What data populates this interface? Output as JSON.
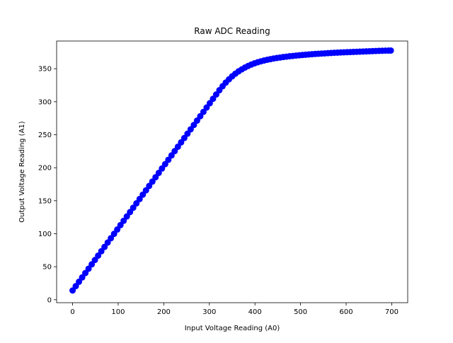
{
  "chart_data": {
    "type": "scatter",
    "title": "Raw ADC Reading",
    "xlabel": "Input Voltage Reading (A0)",
    "ylabel": "Output Voltage Reading (A1)",
    "xlim": [
      -35,
      735
    ],
    "ylim": [
      -4.5,
      392
    ],
    "xticks": [
      0,
      100,
      200,
      300,
      400,
      500,
      600,
      700
    ],
    "yticks": [
      0,
      50,
      100,
      150,
      200,
      250,
      300,
      350
    ],
    "xtick_labels": [
      "0",
      "100",
      "200",
      "300",
      "400",
      "500",
      "600",
      "700"
    ],
    "ytick_labels": [
      "0",
      "50",
      "100",
      "150",
      "200",
      "250",
      "300",
      "350"
    ],
    "grid": false,
    "marker_color": "#0000ff",
    "series": [
      {
        "x": [
          0,
          7,
          14,
          21,
          28,
          35,
          42,
          49,
          56,
          63,
          70,
          77,
          84,
          91,
          98,
          105,
          112,
          119,
          126,
          133,
          140,
          147,
          154,
          161,
          168,
          175,
          182,
          189,
          196,
          203,
          210,
          217,
          224,
          231,
          238,
          245,
          252,
          259,
          266,
          273,
          280,
          287,
          294,
          301,
          308,
          315,
          322,
          329,
          336,
          343,
          350,
          357,
          364,
          371,
          378,
          385,
          392,
          399,
          406,
          413,
          420,
          427,
          434,
          441,
          448,
          455,
          462,
          469,
          476,
          483,
          490,
          497,
          504,
          511,
          518,
          525,
          532,
          539,
          546,
          553,
          560,
          567,
          574,
          581,
          588,
          595,
          602,
          609,
          616,
          623,
          630,
          637,
          644,
          651,
          658,
          665,
          672,
          679,
          686,
          693,
          698
        ],
        "y": [
          14.0,
          20.6,
          27.2,
          33.8,
          40.4,
          47.0,
          53.6,
          60.2,
          66.8,
          73.4,
          80.0,
          86.6,
          93.2,
          99.8,
          106.4,
          113.0,
          119.6,
          126.2,
          132.8,
          139.4,
          146.0,
          152.6,
          159.2,
          165.8,
          172.4,
          179.0,
          185.6,
          192.2,
          198.8,
          205.4,
          212.0,
          218.6,
          225.2,
          231.8,
          238.4,
          245.0,
          251.6,
          258.2,
          264.8,
          271.4,
          278.0,
          284.6,
          291.2,
          297.8,
          304.4,
          311.0,
          317.5,
          323.5,
          329.0,
          334.0,
          338.5,
          342.5,
          346.0,
          349.0,
          351.8,
          354.2,
          356.3,
          358.2,
          359.8,
          361.2,
          362.5,
          363.6,
          364.6,
          365.5,
          366.3,
          367.0,
          367.7,
          368.3,
          368.9,
          369.4,
          369.9,
          370.4,
          370.8,
          371.2,
          371.6,
          372.0,
          372.4,
          372.7,
          373.0,
          373.3,
          373.6,
          373.9,
          374.2,
          374.4,
          374.7,
          374.9,
          375.1,
          375.3,
          375.5,
          375.7,
          375.9,
          376.1,
          376.3,
          376.5,
          376.7,
          376.9,
          377.1,
          377.2,
          377.4,
          377.5,
          377.6
        ]
      }
    ]
  }
}
